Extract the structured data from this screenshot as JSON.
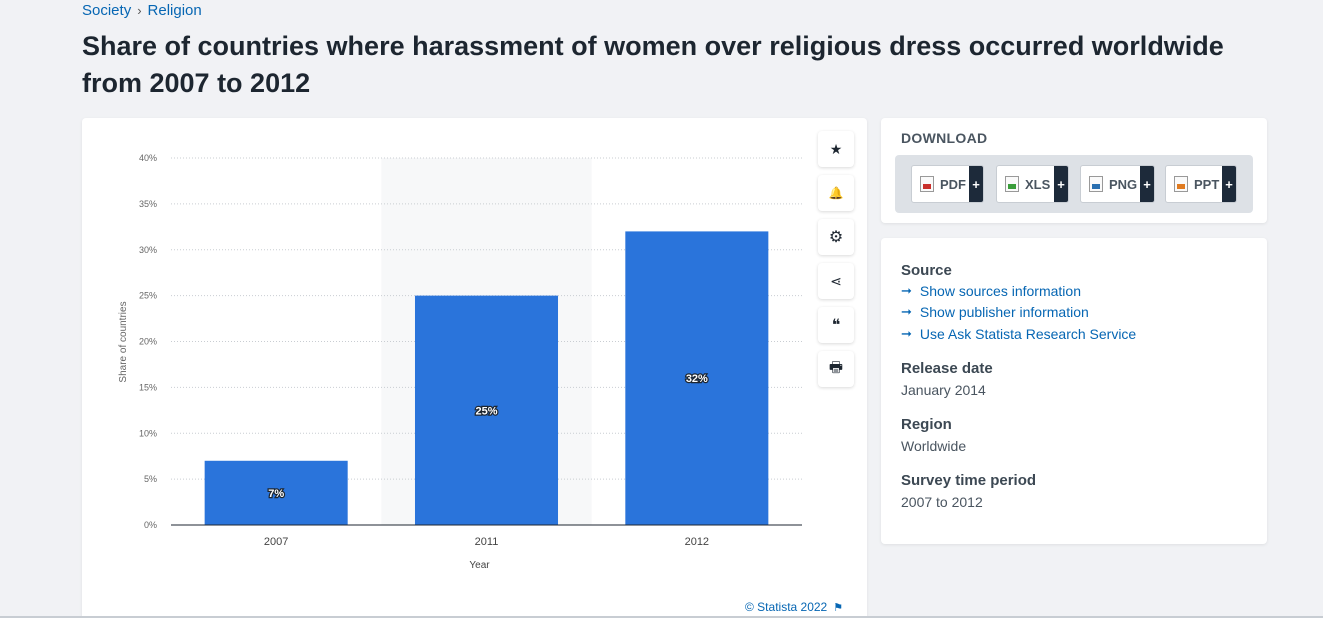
{
  "breadcrumb": {
    "items": [
      "Society",
      "Religion"
    ],
    "separator": "›"
  },
  "page_title": "Share of countries where harassment of women over religious dress occurred worldwide from 2007 to 2012",
  "chart_data": {
    "type": "bar",
    "categories": [
      "2007",
      "2011",
      "2012"
    ],
    "values": [
      7,
      25,
      32
    ],
    "data_labels": [
      "7%",
      "25%",
      "32%"
    ],
    "xlabel": "Year",
    "ylabel": "Share of countries",
    "ylim": [
      0,
      40
    ],
    "yticks": [
      "0%",
      "5%",
      "10%",
      "15%",
      "20%",
      "25%",
      "30%",
      "35%",
      "40%"
    ],
    "grid": true,
    "bar_color": "#2a74db",
    "highlighted_category": "2011"
  },
  "copyright": "© Statista 2022",
  "tools": [
    {
      "name": "favorite-star-icon",
      "glyph": "★"
    },
    {
      "name": "notification-bell-icon",
      "glyph": "🔔"
    },
    {
      "name": "settings-gear-icon",
      "glyph": "⚙"
    },
    {
      "name": "share-icon",
      "glyph": "⋖"
    },
    {
      "name": "citation-quote-icon",
      "glyph": "❝"
    },
    {
      "name": "print-icon",
      "glyph": "🖶"
    }
  ],
  "download": {
    "title": "DOWNLOAD",
    "buttons": [
      {
        "label": "PDF",
        "icon": "pdf-icon"
      },
      {
        "label": "XLS",
        "icon": "xls-icon"
      },
      {
        "label": "PNG",
        "icon": "png-icon"
      },
      {
        "label": "PPT",
        "icon": "ppt-icon"
      }
    ],
    "plus": "+"
  },
  "info": {
    "source_title": "Source",
    "links": [
      "Show sources information",
      "Show publisher information",
      "Use Ask Statista Research Service"
    ],
    "release_title": "Release date",
    "release_value": "January 2014",
    "region_title": "Region",
    "region_value": "Worldwide",
    "period_title": "Survey time period",
    "period_value": "2007 to 2012"
  }
}
